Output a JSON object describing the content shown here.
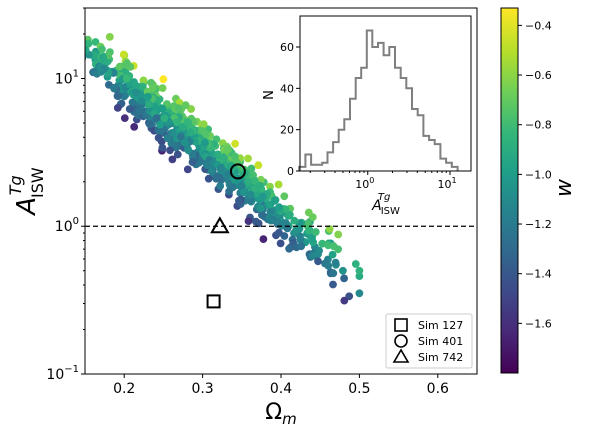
{
  "chart_data": [
    {
      "type": "scatter",
      "xlabel": "Ω_m",
      "ylabel": "A^Tg_ISW",
      "xlim": [
        0.15,
        0.65
      ],
      "ylim": [
        0.1,
        30
      ],
      "yscale": "log",
      "xticks": [
        "0.2",
        "0.3",
        "0.4",
        "0.5",
        "0.6"
      ],
      "yticks": [
        "10^-1",
        "10^0",
        "10^1"
      ],
      "reference_line": {
        "y": 1.0,
        "style": "dashed"
      },
      "colorbar": {
        "label": "w",
        "range": [
          -1.8,
          -0.33
        ],
        "ticks": [
          "-0.4",
          "-0.6",
          "-0.8",
          "-1.0",
          "-1.2",
          "-1.4",
          "-1.6"
        ]
      },
      "highlighted_points": [
        {
          "label": "Sim 127",
          "marker": "square",
          "x": 0.314,
          "y": 0.31
        },
        {
          "label": "Sim 401",
          "marker": "circle",
          "x": 0.345,
          "y": 2.35
        },
        {
          "label": "Sim 742",
          "marker": "triangle",
          "x": 0.322,
          "y": 1.0
        }
      ],
      "legend": "bottom-right",
      "scatter_model": {
        "n_points": 700,
        "log10_y_center": "1.86 - 4.45 * x",
        "log10_y_scatter": 0.23,
        "x_range": [
          0.16,
          0.5
        ],
        "w_vs_residual": "higher y at fixed x -> w closer to -0.4"
      }
    },
    {
      "type": "line",
      "inset": true,
      "style": "step",
      "xlabel": "A^Tg_ISW",
      "ylabel": "N",
      "xscale": "log",
      "xlim": [
        0.15,
        18
      ],
      "ylim": [
        0,
        75
      ],
      "xticks": [
        "10^0",
        "10^1"
      ],
      "yticks": [
        "0",
        "20",
        "40",
        "60"
      ],
      "bin_centers": [
        0.16,
        0.19,
        0.22,
        0.26,
        0.3,
        0.35,
        0.41,
        0.48,
        0.56,
        0.66,
        0.77,
        0.9,
        1.05,
        1.23,
        1.44,
        1.69,
        1.98,
        2.32,
        2.72,
        3.19,
        3.74,
        4.38,
        5.14,
        6.02,
        7.06,
        8.27,
        9.7,
        11.4
      ],
      "counts": [
        2,
        8,
        3,
        3,
        4,
        9,
        14,
        20,
        25,
        35,
        45,
        50,
        68,
        60,
        62,
        56,
        60,
        50,
        45,
        40,
        30,
        27,
        17,
        15,
        13,
        6,
        4,
        2
      ]
    }
  ],
  "legend_items": [
    {
      "label": "Sim 127",
      "marker": "square"
    },
    {
      "label": "Sim 401",
      "marker": "circle"
    },
    {
      "label": "Sim 742",
      "marker": "triangle"
    }
  ],
  "colors": {
    "viridis": [
      "#440154",
      "#482878",
      "#3e4989",
      "#31688e",
      "#26828e",
      "#1f9e89",
      "#35b779",
      "#6ece58",
      "#b5de2b",
      "#fde725"
    ],
    "histogram_line": "#7f7f7f",
    "reference_line": "#000000"
  }
}
